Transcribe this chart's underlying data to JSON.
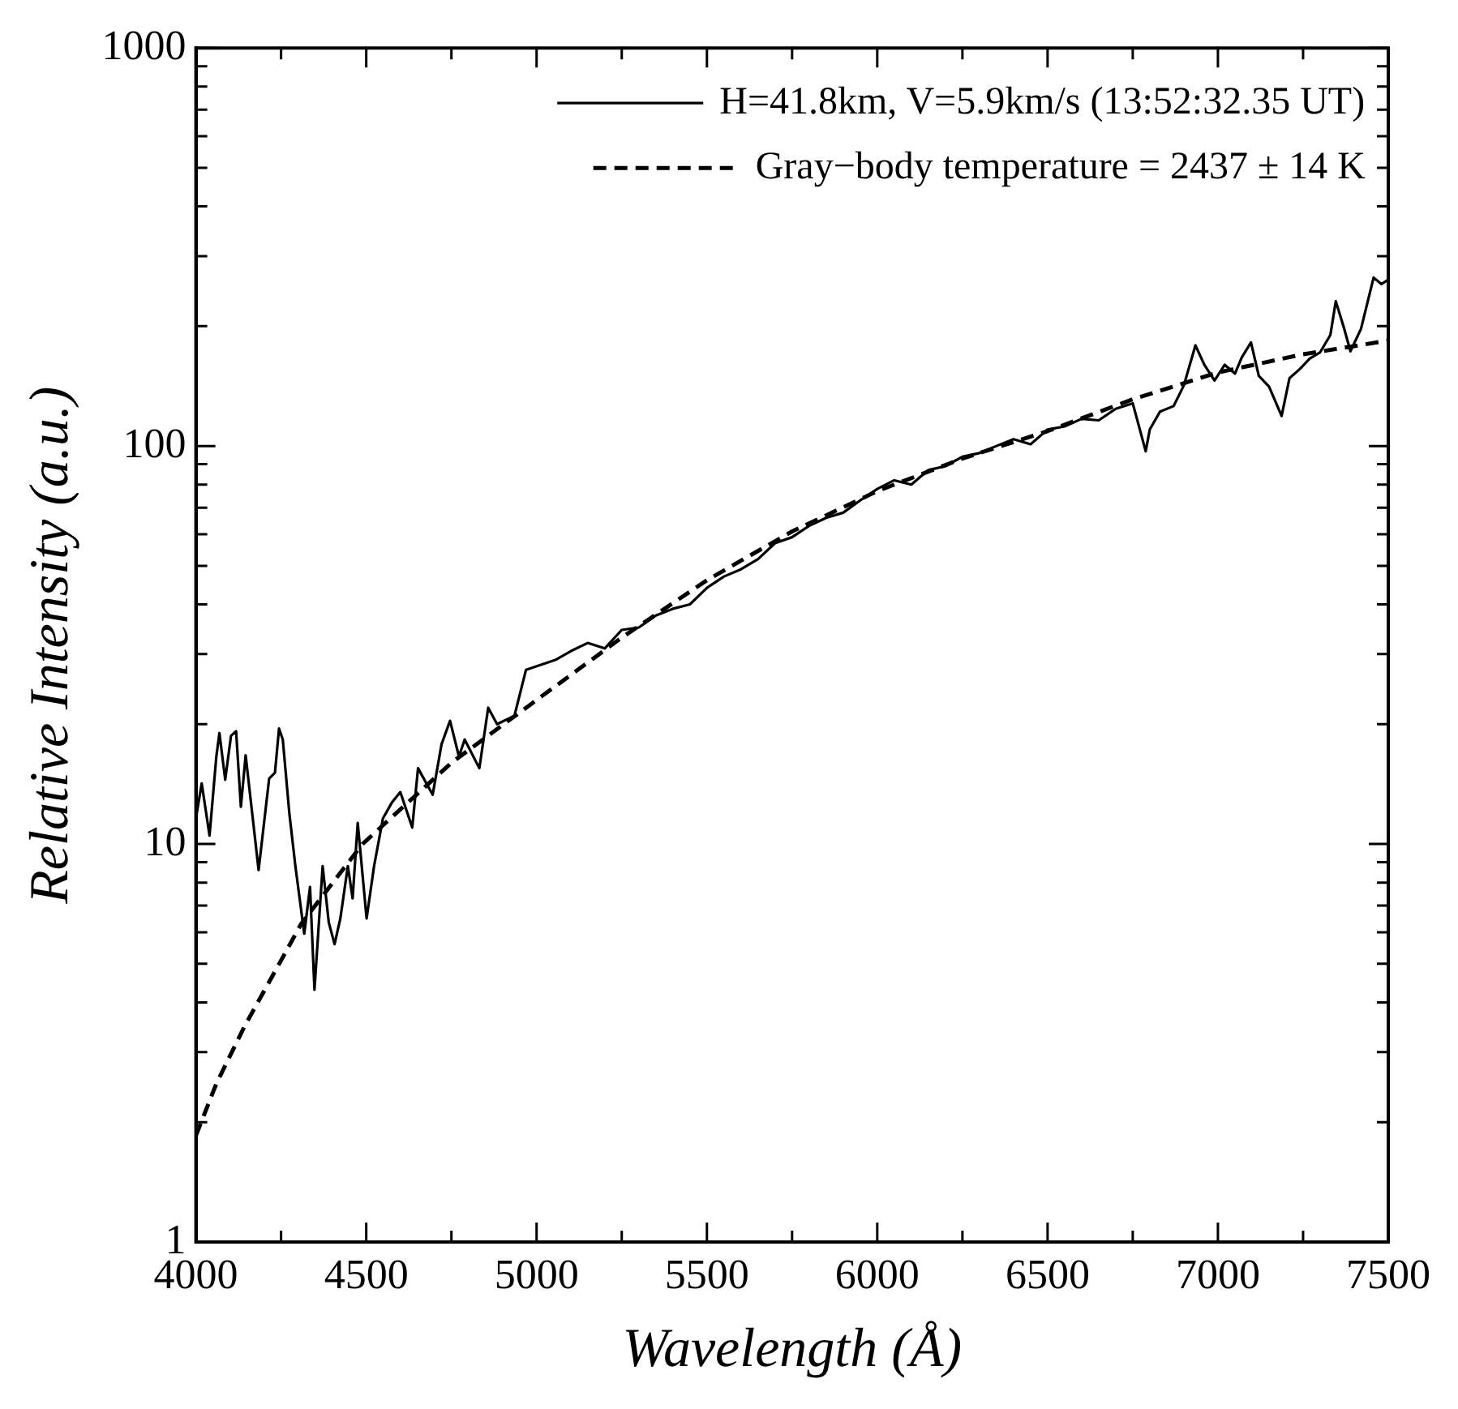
{
  "chart_data": {
    "type": "line",
    "xlabel": "Wavelength (Å)",
    "ylabel": "Relative Intensity (a.u.)",
    "xlim": [
      4000,
      7500
    ],
    "ylim": [
      1,
      1000
    ],
    "xticks": [
      4000,
      {
        "value": 4250,
        "label": null
      },
      4500,
      {
        "value": 4750,
        "label": null
      },
      5000,
      {
        "value": 5250,
        "label": null
      },
      5500,
      {
        "value": 5750,
        "label": null
      },
      6000,
      {
        "value": 6250,
        "label": null
      },
      6500,
      {
        "value": 6750,
        "label": null
      },
      7000,
      {
        "value": 7250,
        "label": null
      },
      7500
    ],
    "yticks": [
      1,
      {
        "value": 2,
        "label": null
      },
      {
        "value": 3,
        "label": null
      },
      {
        "value": 4,
        "label": null
      },
      {
        "value": 5,
        "label": null
      },
      {
        "value": 6,
        "label": null
      },
      {
        "value": 7,
        "label": null
      },
      {
        "value": 8,
        "label": null
      },
      {
        "value": 9,
        "label": null
      },
      10,
      {
        "value": 20,
        "label": null
      },
      {
        "value": 30,
        "label": null
      },
      {
        "value": 40,
        "label": null
      },
      {
        "value": 50,
        "label": null
      },
      {
        "value": 60,
        "label": null
      },
      {
        "value": 70,
        "label": null
      },
      {
        "value": 80,
        "label": null
      },
      {
        "value": 90,
        "label": null
      },
      100,
      {
        "value": 200,
        "label": null
      },
      {
        "value": 300,
        "label": null
      },
      {
        "value": 400,
        "label": null
      },
      {
        "value": 500,
        "label": null
      },
      {
        "value": 600,
        "label": null
      },
      {
        "value": 700,
        "label": null
      },
      {
        "value": 800,
        "label": null
      },
      {
        "value": 900,
        "label": null
      },
      1000
    ],
    "log": "y",
    "grid": false,
    "legend": "top right",
    "marker": "none",
    "series": [
      {
        "name": "H=41.8km, V=5.9km/s (13:52:32.35 UT)",
        "color": "#000000",
        "line_style": "solid",
        "x": [
          4000,
          4017,
          4040,
          4060,
          4069,
          4086,
          4103,
          4118,
          4132,
          4146,
          4184,
          4215,
          4232,
          4244,
          4255,
          4274,
          4292,
          4318,
          4335,
          4348,
          4372,
          4390,
          4407,
          4424,
          4446,
          4460,
          4475,
          4501,
          4523,
          4549,
          4575,
          4600,
          4635,
          4652,
          4695,
          4721,
          4746,
          4772,
          4789,
          4832,
          4858,
          4884,
          4935,
          4969,
          5055,
          5100,
          5150,
          5200,
          5250,
          5300,
          5350,
          5400,
          5450,
          5500,
          5550,
          5600,
          5650,
          5700,
          5750,
          5800,
          5850,
          5900,
          5950,
          6000,
          6050,
          6100,
          6150,
          6200,
          6250,
          6300,
          6350,
          6400,
          6450,
          6500,
          6550,
          6600,
          6650,
          6700,
          6750,
          6788,
          6800,
          6830,
          6870,
          6900,
          6934,
          6960,
          6990,
          7020,
          7050,
          7070,
          7097,
          7120,
          7150,
          7187,
          7210,
          7240,
          7270,
          7300,
          7330,
          7346,
          7370,
          7389,
          7420,
          7457,
          7480,
          7500
        ],
        "values": [
          11.6,
          14.2,
          10.5,
          16.6,
          19,
          14.5,
          18.7,
          19.2,
          12.4,
          16.7,
          8.6,
          14.6,
          15.1,
          19.5,
          18.3,
          12,
          8.8,
          5.95,
          7.8,
          4.3,
          8.8,
          6.35,
          5.6,
          6.5,
          8.8,
          7.3,
          11.3,
          6.5,
          8.8,
          11.6,
          12.7,
          13.5,
          11,
          15.5,
          13.3,
          17.8,
          20.4,
          16.6,
          18.3,
          15.5,
          22,
          20,
          21,
          27.4,
          29,
          30.5,
          32,
          31,
          34.5,
          35,
          37.5,
          39,
          40,
          44,
          47,
          49,
          52,
          57,
          59,
          63,
          66,
          68,
          73,
          78,
          82,
          80,
          87,
          89,
          94,
          96,
          100,
          104,
          101,
          110,
          112,
          117,
          116,
          124,
          128,
          97,
          110,
          122,
          126,
          142,
          179,
          160,
          146,
          160,
          152,
          167,
          182,
          150,
          141,
          119,
          148,
          156,
          166,
          172,
          190,
          231,
          198,
          173,
          197,
          265,
          255,
          262
        ]
      },
      {
        "name": "Gray−body temperature = 2437 ± 14 K",
        "color": "#000000",
        "line_style": "dashed",
        "x": [
          4000,
          4060,
          4144,
          4250,
          4309,
          4489,
          4750,
          5000,
          5250,
          5500,
          5750,
          6000,
          6250,
          6500,
          6750,
          7000,
          7250,
          7500
        ],
        "values": [
          1.85,
          2.5,
          3.5,
          5.1,
          6.3,
          10,
          16,
          23,
          33,
          46,
          61,
          77,
          93,
          109,
          131,
          153,
          170,
          184
        ]
      }
    ]
  }
}
